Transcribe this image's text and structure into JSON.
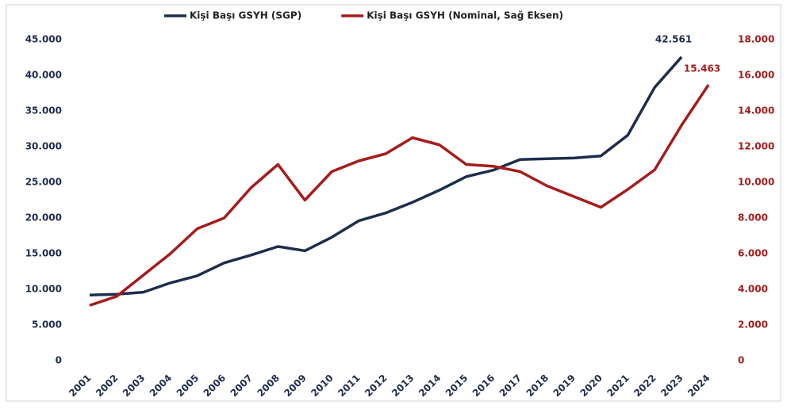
{
  "chart_data": {
    "type": "line",
    "categories": [
      "2001",
      "2002",
      "2003",
      "2004",
      "2005",
      "2006",
      "2007",
      "2008",
      "2009",
      "2010",
      "2011",
      "2012",
      "2013",
      "2014",
      "2015",
      "2016",
      "2017",
      "2018",
      "2019",
      "2020",
      "2021",
      "2022",
      "2023",
      "2024"
    ],
    "series": [
      {
        "name": "Kişi Başı GSYH (SGP)",
        "color": "#1f2d4d",
        "axis": "y",
        "values": [
          9200,
          9300,
          9600,
          10900,
          11900,
          13700,
          14800,
          16000,
          15400,
          17300,
          19600,
          20700,
          22200,
          23900,
          25800,
          26700,
          28200,
          28300,
          28400,
          28700,
          31600,
          38300,
          42561,
          null
        ],
        "value_labels": [
          null,
          null,
          null,
          null,
          null,
          null,
          null,
          null,
          null,
          null,
          null,
          null,
          null,
          null,
          null,
          null,
          null,
          null,
          null,
          null,
          null,
          null,
          "42.561",
          null
        ]
      },
      {
        "name": "Kişi Başı GSYH (Nominal, Sağ Eksen)",
        "color": "#a51c1c",
        "axis": "y2",
        "values": [
          3100,
          3600,
          4800,
          6000,
          7400,
          8000,
          9700,
          11000,
          9000,
          10600,
          11200,
          11600,
          12500,
          12100,
          11000,
          10900,
          10600,
          9800,
          9200,
          8600,
          9600,
          10700,
          13200,
          15463
        ],
        "value_labels": [
          null,
          null,
          null,
          null,
          null,
          null,
          null,
          null,
          null,
          null,
          null,
          null,
          null,
          null,
          null,
          null,
          null,
          null,
          null,
          null,
          null,
          null,
          null,
          "15.463"
        ]
      }
    ],
    "ylim": [
      0,
      45000
    ],
    "yticks": [
      0,
      {
        "value": 5000,
        "label": "5.000"
      },
      {
        "value": 10000,
        "label": "10.000"
      },
      {
        "value": 15000,
        "label": "15.000"
      },
      {
        "value": 20000,
        "label": "20.000"
      },
      {
        "value": 25000,
        "label": "25.000"
      },
      {
        "value": 30000,
        "label": "30.000"
      },
      {
        "value": 35000,
        "label": "35.000"
      },
      {
        "value": 40000,
        "label": "40.000"
      },
      {
        "value": 45000,
        "label": "45.000"
      }
    ],
    "y2lim": [
      0,
      18000
    ],
    "y2ticks": [
      0,
      {
        "value": 2000,
        "label": "2.000"
      },
      {
        "value": 4000,
        "label": "4.000"
      },
      {
        "value": 6000,
        "label": "6.000"
      },
      {
        "value": 8000,
        "label": "8.000"
      },
      {
        "value": 10000,
        "label": "10.000"
      },
      {
        "value": 12000,
        "label": "12.000"
      },
      {
        "value": 14000,
        "label": "14.000"
      },
      {
        "value": 16000,
        "label": "16.000"
      },
      {
        "value": 18000,
        "label": "18.000"
      }
    ],
    "grid": false,
    "legend": "top"
  }
}
